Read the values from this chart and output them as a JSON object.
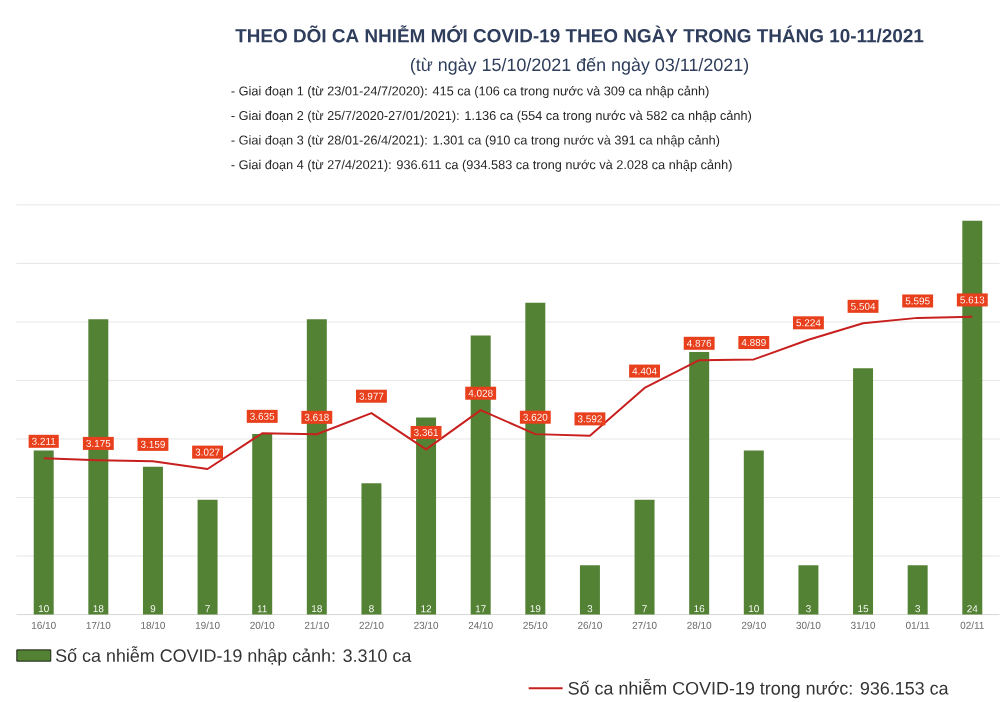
{
  "chart_data": {
    "type": "bar",
    "title": "THEO DÕI CA NHIỄM MỚI COVID-19 THEO NGÀY TRONG THÁNG 10-11/2021",
    "subtitle": "(từ ngày 15/10/2021 đến ngày 03/11/2021)",
    "annotations": [
      "- Giai đoạn 1 (từ 23/01-24/7/2020): 415 ca (106 ca trong nước và 309 ca nhập cảnh)",
      "- Giai đoạn 2 (từ 25/7/2020-27/01/2021): 1.136 ca (554 ca trong nước và 582 ca nhập cảnh)",
      "- Giai đoạn 3 (từ 28/01-26/4/2021): 1.301 ca (910 ca trong nước và 391 ca nhập cảnh)",
      "- Giai đoạn 4 (từ 27/4/2021): 936.611 ca (934.583 ca trong nước và 2.028 ca nhập cảnh)"
    ],
    "categories": [
      "16/10",
      "17/10",
      "18/10",
      "19/10",
      "20/10",
      "21/10",
      "22/10",
      "23/10",
      "24/10",
      "25/10",
      "26/10",
      "27/10",
      "28/10",
      "29/10",
      "30/10",
      "31/10",
      "01/11",
      "02/11"
    ],
    "series": [
      {
        "name": "Số ca nhiễm COVID-19 nhập cảnh: 3.310 ca",
        "color": "#548235",
        "values": [
          10,
          18,
          9,
          7,
          11,
          18,
          8,
          12,
          17,
          19,
          3,
          7,
          16,
          10,
          3,
          15,
          3,
          24
        ]
      },
      {
        "name": "Số ca nhiễm COVID-19 trong nước: 936.153 ca",
        "type": "line",
        "axis": "y2",
        "color": "#c8201e",
        "values": [
          3211,
          3175,
          3159,
          3027,
          3635,
          3618,
          3977,
          3361,
          4028,
          3620,
          3592,
          4404,
          4876,
          4889,
          5224,
          5504,
          5595,
          5613
        ],
        "value_labels": [
          "3.211",
          "3.175",
          "3.159",
          "3.027",
          "3.635",
          "3.618",
          "3.977",
          "3.361",
          "4.028",
          "3.620",
          "3.592",
          "4.404",
          "4.876",
          "4.889",
          "5.224",
          "5.504",
          "5.595",
          "5.613"
        ]
      }
    ],
    "data_labels": true,
    "grid": "y",
    "legend": "bottom",
    "marker": "none",
    "line_style": "solid"
  }
}
